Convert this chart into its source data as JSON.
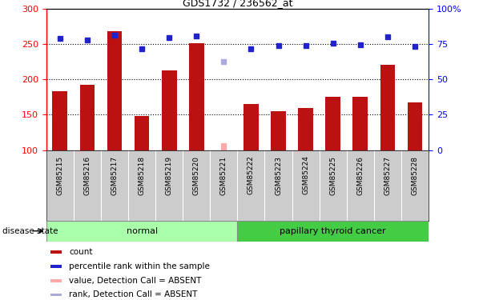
{
  "title": "GDS1732 / 236562_at",
  "samples": [
    "GSM85215",
    "GSM85216",
    "GSM85217",
    "GSM85218",
    "GSM85219",
    "GSM85220",
    "GSM85221",
    "GSM85222",
    "GSM85223",
    "GSM85224",
    "GSM85225",
    "GSM85226",
    "GSM85227",
    "GSM85228"
  ],
  "count_values": [
    183,
    193,
    268,
    148,
    213,
    251,
    null,
    165,
    155,
    160,
    175,
    175,
    221,
    167
  ],
  "count_absent": [
    null,
    null,
    null,
    null,
    null,
    null,
    110,
    null,
    null,
    null,
    null,
    null,
    null,
    null
  ],
  "rank_values": [
    258,
    256,
    263,
    243,
    259,
    262,
    null,
    243,
    248,
    248,
    251,
    249,
    261,
    247
  ],
  "rank_absent": [
    null,
    null,
    null,
    null,
    null,
    null,
    225,
    null,
    null,
    null,
    null,
    null,
    null,
    null
  ],
  "ylim": [
    100,
    300
  ],
  "yticks_left": [
    100,
    150,
    200,
    250,
    300
  ],
  "yticks_right": [
    0,
    25,
    50,
    75,
    100
  ],
  "hlines": [
    150,
    200,
    250
  ],
  "normal_indices": [
    0,
    1,
    2,
    3,
    4,
    5,
    6
  ],
  "cancer_indices": [
    7,
    8,
    9,
    10,
    11,
    12,
    13
  ],
  "bar_color": "#bb1111",
  "bar_absent_color": "#ffaaaa",
  "rank_color": "#2222cc",
  "rank_absent_color": "#aaaadd",
  "normal_bg": "#aaffaa",
  "cancer_bg": "#44cc44",
  "xtick_bg": "#cccccc",
  "disease_label": "disease state",
  "normal_label": "normal",
  "cancer_label": "papillary thyroid cancer",
  "legend_items": [
    {
      "label": "count",
      "color": "#bb1111"
    },
    {
      "label": "percentile rank within the sample",
      "color": "#2222cc"
    },
    {
      "label": "value, Detection Call = ABSENT",
      "color": "#ffaaaa"
    },
    {
      "label": "rank, Detection Call = ABSENT",
      "color": "#aaaadd"
    }
  ]
}
